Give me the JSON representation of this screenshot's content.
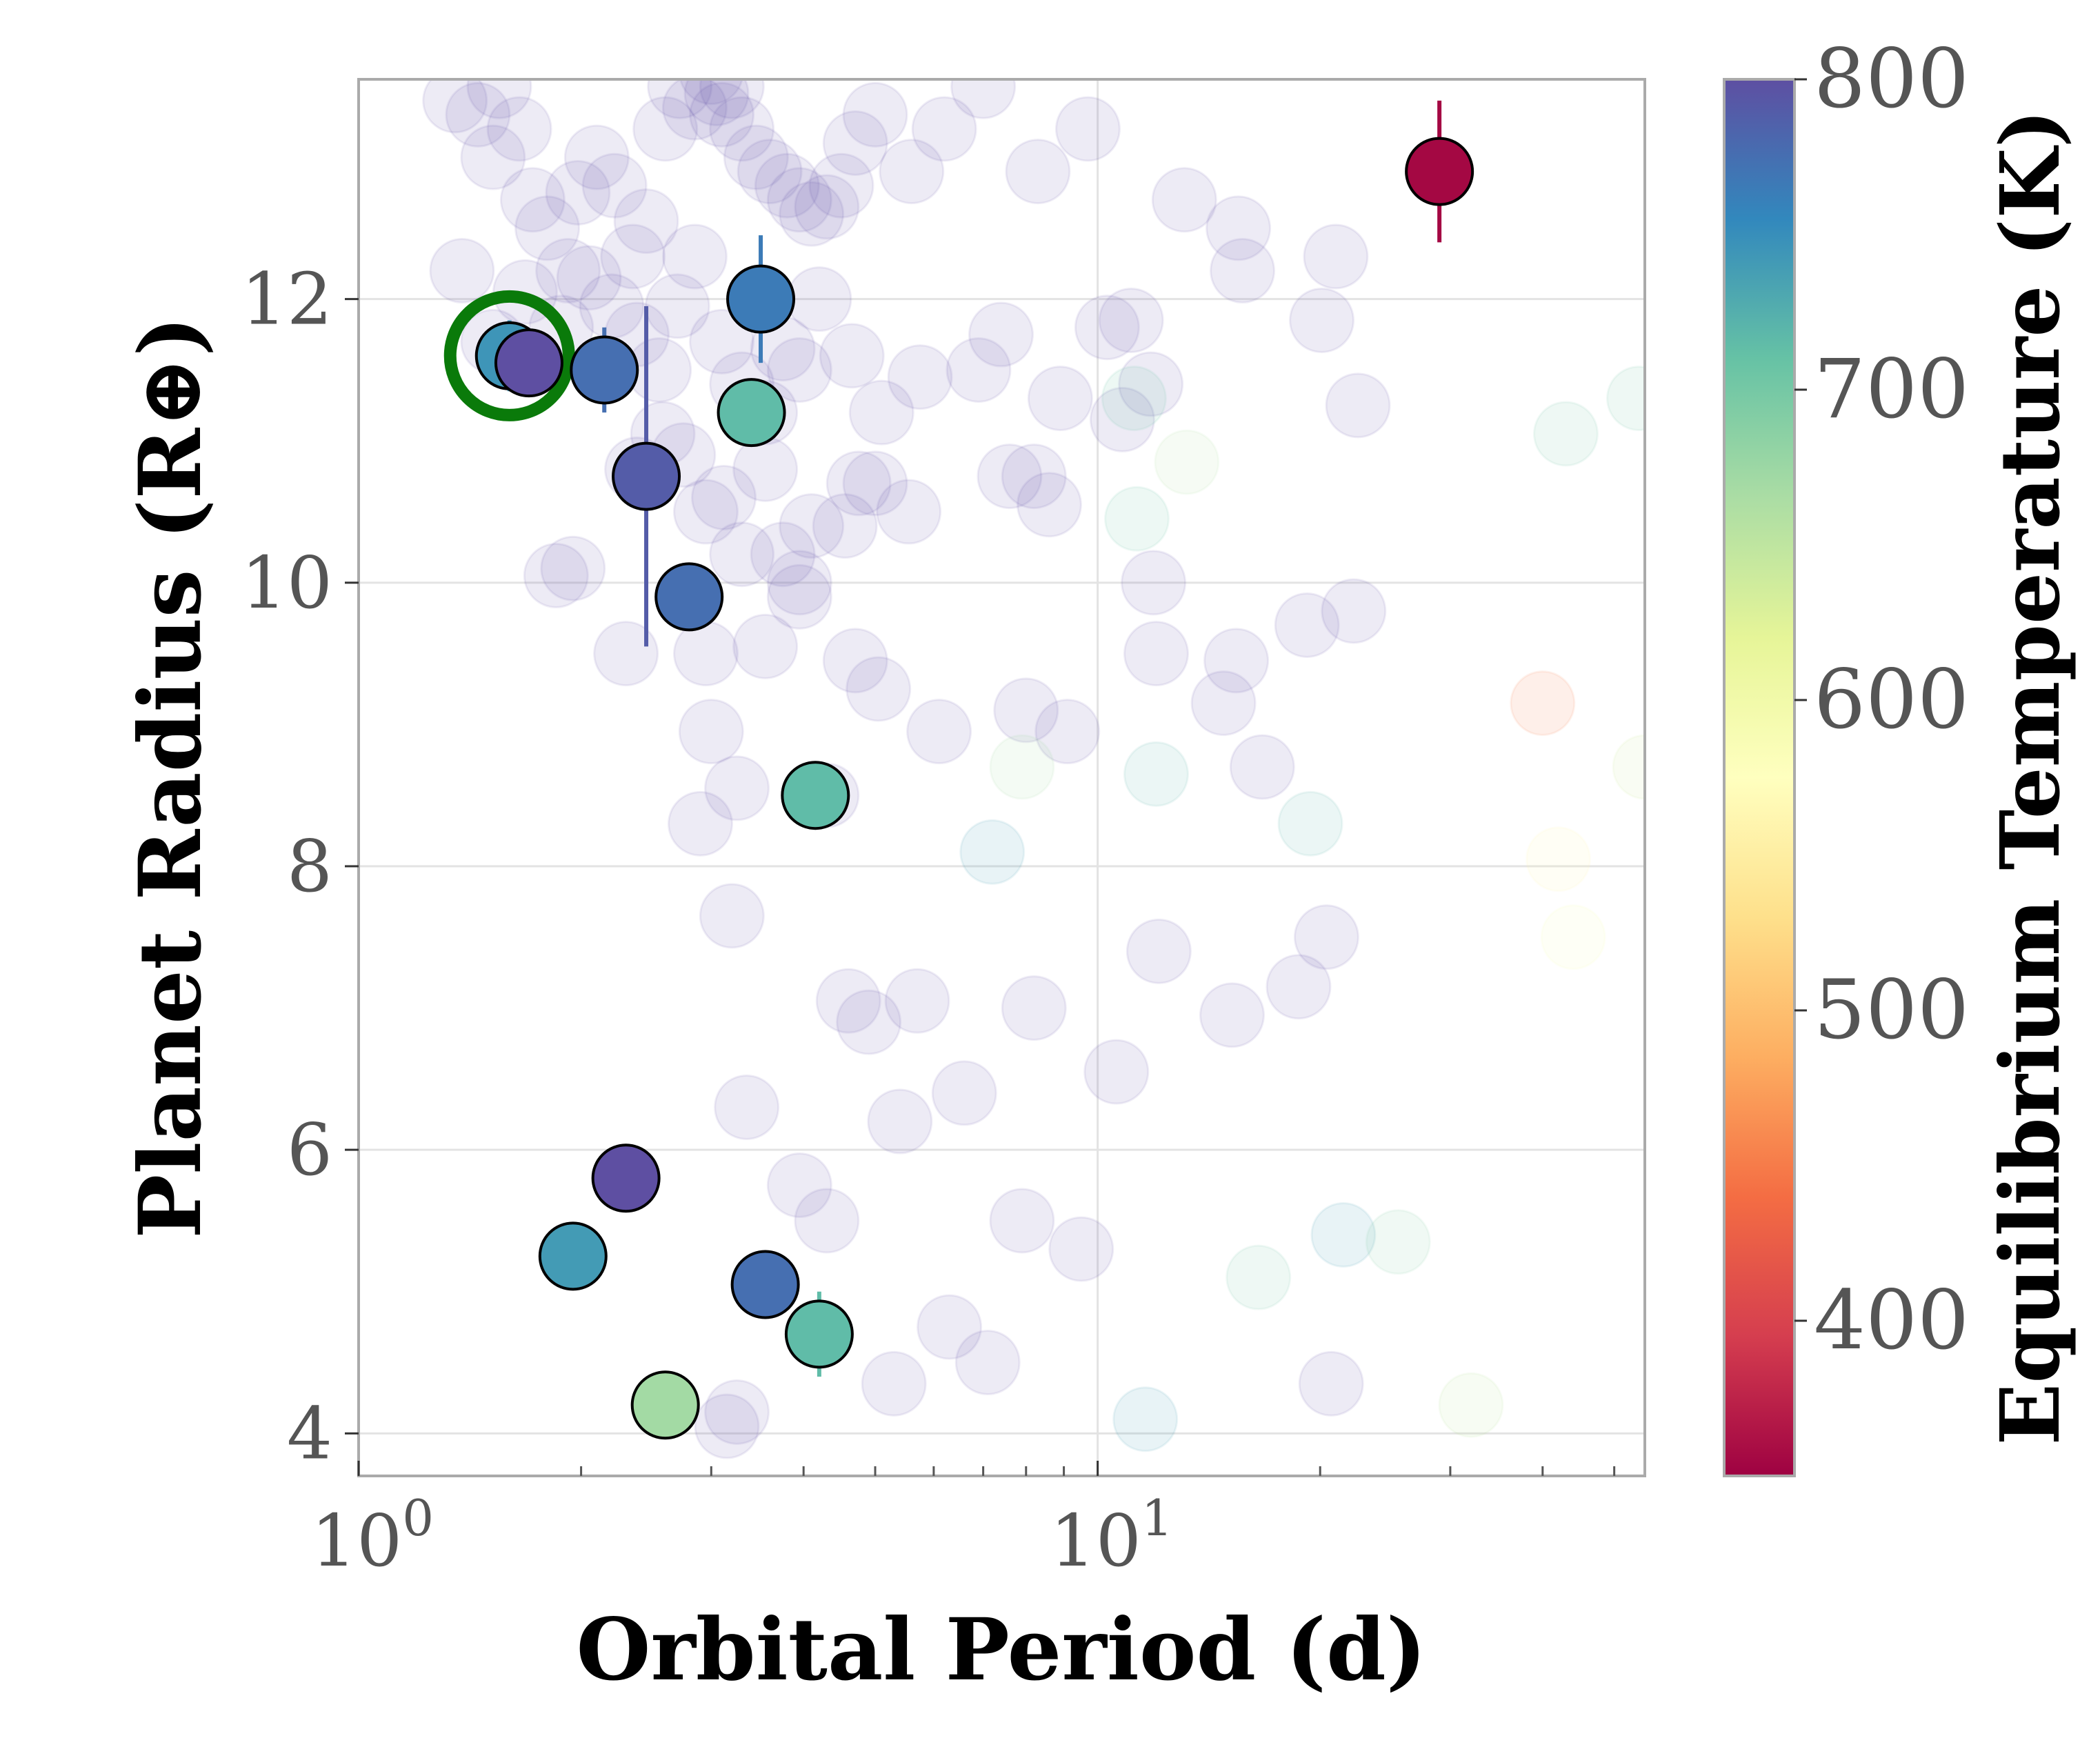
{
  "chart_data": {
    "type": "scatter",
    "xlabel": "Orbital Period (d)",
    "ylabel": "Planet Radius (R⊕)",
    "xscale": "log",
    "xlim": [
      1.0,
      55
    ],
    "ylim": [
      3.7,
      13.55
    ],
    "x_ticks": [
      {
        "value": 1,
        "base": "10",
        "exp": "0"
      },
      {
        "value": 10,
        "base": "10",
        "exp": "1"
      }
    ],
    "y_ticks": [
      4,
      6,
      8,
      10,
      12
    ],
    "grid": true,
    "colorbar": {
      "label": "Equilibrium Temperature (K)",
      "colormap": "Spectral",
      "range": [
        350,
        800
      ],
      "ticks": [
        400,
        500,
        600,
        700,
        800
      ]
    },
    "background_series": {
      "alpha": 0.12,
      "points": [
        [
          1.35,
          13.4
        ],
        [
          1.45,
          13.3
        ],
        [
          1.52,
          13.0
        ],
        [
          1.55,
          13.5
        ],
        [
          1.65,
          13.2
        ],
        [
          1.72,
          12.7
        ],
        [
          1.8,
          12.5
        ],
        [
          1.92,
          12.2
        ],
        [
          1.98,
          12.75
        ],
        [
          2.1,
          13.0
        ],
        [
          2.22,
          12.8
        ],
        [
          2.35,
          12.3
        ],
        [
          2.45,
          12.55
        ],
        [
          2.6,
          13.2
        ],
        [
          2.72,
          13.5
        ],
        [
          2.85,
          13.35
        ],
        [
          3.0,
          13.6
        ],
        [
          3.05,
          13.45
        ],
        [
          3.1,
          13.3
        ],
        [
          3.2,
          13.5
        ],
        [
          3.3,
          13.2
        ],
        [
          3.45,
          13.0
        ],
        [
          3.6,
          12.9
        ],
        [
          3.8,
          12.8
        ],
        [
          3.95,
          12.7
        ],
        [
          4.1,
          12.6
        ],
        [
          4.3,
          12.65
        ],
        [
          4.5,
          12.8
        ],
        [
          4.7,
          13.1
        ],
        [
          5.0,
          13.3
        ],
        [
          5.6,
          12.9
        ],
        [
          6.2,
          13.2
        ],
        [
          7.0,
          13.5
        ],
        [
          8.3,
          12.9
        ],
        [
          9.7,
          13.2
        ],
        [
          13.1,
          12.7
        ],
        [
          15.5,
          12.5
        ],
        [
          21.0,
          12.3
        ],
        [
          1.38,
          12.2
        ],
        [
          1.52,
          11.7
        ],
        [
          1.68,
          12.05
        ],
        [
          1.88,
          11.8
        ],
        [
          2.05,
          12.15
        ],
        [
          2.2,
          11.95
        ],
        [
          2.38,
          11.75
        ],
        [
          2.55,
          11.5
        ],
        [
          2.7,
          11.95
        ],
        [
          2.85,
          12.3
        ],
        [
          3.1,
          11.7
        ],
        [
          3.3,
          11.4
        ],
        [
          3.55,
          11.2
        ],
        [
          3.75,
          11.65
        ],
        [
          3.95,
          11.5
        ],
        [
          4.2,
          12.0
        ],
        [
          4.65,
          11.6
        ],
        [
          5.1,
          11.2
        ],
        [
          5.75,
          11.45
        ],
        [
          6.9,
          11.5
        ],
        [
          7.4,
          11.75
        ],
        [
          8.9,
          11.3
        ],
        [
          10.3,
          11.8
        ],
        [
          11.1,
          11.85
        ],
        [
          11.8,
          11.4
        ],
        [
          10.8,
          11.15
        ],
        [
          15.7,
          12.2
        ],
        [
          20.1,
          11.85
        ],
        [
          22.5,
          11.25
        ],
        [
          1.85,
          10.05
        ],
        [
          1.95,
          10.1
        ],
        [
          2.38,
          10.8
        ],
        [
          2.58,
          11.05
        ],
        [
          2.75,
          10.9
        ],
        [
          2.95,
          10.5
        ],
        [
          3.12,
          10.6
        ],
        [
          3.3,
          10.2
        ],
        [
          3.55,
          10.8
        ],
        [
          3.75,
          10.2
        ],
        [
          3.95,
          10.0
        ],
        [
          4.1,
          10.4
        ],
        [
          4.55,
          10.4
        ],
        [
          4.75,
          10.7
        ],
        [
          5.0,
          10.7
        ],
        [
          5.55,
          10.5
        ],
        [
          7.6,
          10.75
        ],
        [
          8.2,
          10.75
        ],
        [
          8.6,
          10.55
        ],
        [
          11.9,
          10.0
        ],
        [
          19.2,
          9.7
        ],
        [
          22.2,
          9.8
        ],
        [
          2.3,
          9.5
        ],
        [
          2.95,
          9.5
        ],
        [
          3.0,
          8.95
        ],
        [
          3.55,
          9.55
        ],
        [
          3.95,
          9.9
        ],
        [
          4.7,
          9.45
        ],
        [
          5.05,
          9.25
        ],
        [
          6.1,
          8.95
        ],
        [
          8.0,
          9.1
        ],
        [
          9.1,
          8.95
        ],
        [
          12.0,
          9.5
        ],
        [
          14.8,
          9.15
        ],
        [
          15.4,
          9.45
        ],
        [
          16.7,
          8.7
        ],
        [
          3.25,
          8.55
        ],
        [
          2.9,
          8.3
        ],
        [
          4.3,
          8.5
        ],
        [
          3.2,
          7.65
        ],
        [
          4.6,
          7.05
        ],
        [
          4.9,
          6.9
        ],
        [
          5.7,
          7.05
        ],
        [
          8.2,
          7.0
        ],
        [
          12.1,
          7.4
        ],
        [
          15.2,
          6.95
        ],
        [
          18.7,
          7.15
        ],
        [
          20.4,
          7.5
        ],
        [
          10.6,
          6.55
        ],
        [
          6.6,
          6.4
        ],
        [
          3.35,
          6.3
        ],
        [
          3.95,
          5.75
        ],
        [
          4.3,
          5.5
        ],
        [
          5.4,
          6.2
        ],
        [
          7.9,
          5.5
        ],
        [
          9.5,
          5.3
        ],
        [
          6.3,
          4.75
        ],
        [
          7.1,
          4.5
        ],
        [
          5.3,
          4.35
        ],
        [
          3.25,
          4.15
        ],
        [
          3.15,
          4.05
        ],
        [
          20.7,
          4.35
        ]
      ],
      "colored_points": [
        [
          11.2,
          11.3,
          705
        ],
        [
          11.3,
          10.45,
          705
        ],
        [
          13.2,
          10.85,
          660
        ],
        [
          12.0,
          8.65,
          720
        ],
        [
          7.9,
          8.7,
          670
        ],
        [
          7.2,
          8.1,
          740
        ],
        [
          19.4,
          8.3,
          720
        ],
        [
          43.0,
          11.05,
          700
        ],
        [
          54.0,
          11.3,
          700
        ],
        [
          40.0,
          9.15,
          450
        ],
        [
          42.0,
          8.05,
          560
        ],
        [
          44.0,
          7.5,
          590
        ],
        [
          55.0,
          8.7,
          640
        ],
        [
          21.5,
          5.4,
          740
        ],
        [
          25.5,
          5.35,
          690
        ],
        [
          16.5,
          5.1,
          700
        ],
        [
          11.6,
          4.1,
          740
        ],
        [
          32.0,
          4.2,
          650
        ]
      ]
    },
    "highlighted_series": {
      "points": [
        {
          "x": 1.6,
          "y": 11.6,
          "yerr": [
            0.25,
            0.25
          ],
          "teq": 745,
          "marked": true
        },
        {
          "x": 1.7,
          "y": 11.55,
          "yerr": [
            0.0,
            0.0
          ],
          "teq": 800,
          "marked": false
        },
        {
          "x": 2.15,
          "y": 11.5,
          "yerr": [
            0.3,
            0.3
          ],
          "teq": 775,
          "marked": false
        },
        {
          "x": 2.45,
          "y": 10.75,
          "yerr": [
            1.2,
            1.2
          ],
          "teq": 790,
          "marked": false
        },
        {
          "x": 2.8,
          "y": 9.9,
          "yerr": [
            0.0,
            0.0
          ],
          "teq": 775,
          "marked": false
        },
        {
          "x": 3.5,
          "y": 12.0,
          "yerr": [
            0.45,
            0.45
          ],
          "teq": 765,
          "marked": false
        },
        {
          "x": 3.4,
          "y": 11.2,
          "yerr": [
            0.0,
            0.0
          ],
          "teq": 715,
          "marked": false
        },
        {
          "x": 4.15,
          "y": 8.5,
          "yerr": [
            0.0,
            0.0
          ],
          "teq": 715,
          "marked": false
        },
        {
          "x": 2.3,
          "y": 5.8,
          "yerr": [
            0.0,
            0.0
          ],
          "teq": 800,
          "marked": false
        },
        {
          "x": 1.95,
          "y": 5.25,
          "yerr": [
            0.0,
            0.0
          ],
          "teq": 740,
          "marked": false
        },
        {
          "x": 3.55,
          "y": 5.05,
          "yerr": [
            0.0,
            0.0
          ],
          "teq": 775,
          "marked": false
        },
        {
          "x": 4.2,
          "y": 4.7,
          "yerr": [
            0.3,
            0.3
          ],
          "teq": 715,
          "marked": false
        },
        {
          "x": 2.6,
          "y": 4.2,
          "yerr": [
            0.0,
            0.0
          ],
          "teq": 670,
          "marked": false
        },
        {
          "x": 29.0,
          "y": 12.9,
          "yerr": [
            0.5,
            0.5
          ],
          "teq": 355,
          "marked": false
        }
      ]
    },
    "colors": {
      "background_point": "#6a5aad",
      "marker_ring": "#0a7a0a",
      "grid": "#e3e3e3",
      "axis_frame": "#aaaaaa",
      "point_edge": "#000000"
    }
  }
}
